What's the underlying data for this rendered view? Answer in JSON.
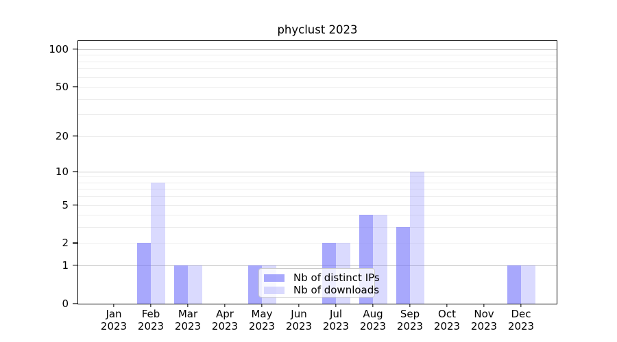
{
  "chart_data": {
    "type": "bar",
    "title": "phyclust 2023",
    "categories": [
      "Jan",
      "Feb",
      "Mar",
      "Apr",
      "May",
      "Jun",
      "Jul",
      "Aug",
      "Sep",
      "Oct",
      "Nov",
      "Dec"
    ],
    "category_year": "2023",
    "series": [
      {
        "name": "Nb of distinct IPs",
        "color": "#a8a8fa",
        "fill": "rgba(122,122,250,0.65)",
        "values": [
          0,
          2,
          1,
          0,
          1,
          0,
          2,
          4,
          3,
          0,
          0,
          1
        ]
      },
      {
        "name": "Nb of downloads",
        "color": "#d9d9fa",
        "fill": "rgba(122,122,250,0.28)",
        "values": [
          0,
          8,
          1,
          0,
          1,
          0,
          2,
          4,
          10,
          0,
          0,
          1
        ]
      }
    ],
    "y_ticks": [
      0,
      1,
      2,
      5,
      10,
      20,
      50,
      100
    ],
    "y_scale": "log10(value+1)",
    "y_max": 116,
    "ylim": [
      0,
      116
    ],
    "grid": {
      "major_lines": [
        1,
        10,
        100
      ],
      "minor_lines": [
        2,
        3,
        4,
        5,
        6,
        7,
        8,
        9,
        20,
        30,
        40,
        50,
        60,
        70,
        80,
        90
      ],
      "major_color": "#c9c9c9",
      "minor_color": "#ededed"
    },
    "legend_position": "lower center inside plot",
    "axis_color": "#000000"
  }
}
